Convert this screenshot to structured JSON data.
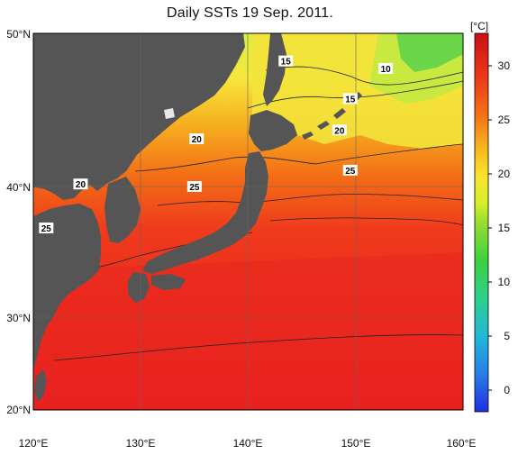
{
  "title": "Daily SSTs 19 Sep. 2011.",
  "map": {
    "x_ticks": [
      "120°E",
      "130°E",
      "140°E",
      "150°E",
      "160°E"
    ],
    "y_ticks": [
      "50°N",
      "40°N",
      "30°N",
      "20°N"
    ],
    "contour_labels": [
      {
        "text": "15",
        "lon": 143.5,
        "lat": 47.8
      },
      {
        "text": "10",
        "lon": 152.8,
        "lat": 47.2
      },
      {
        "text": "15",
        "lon": 149.5,
        "lat": 44.8
      },
      {
        "text": "20",
        "lon": 135.2,
        "lat": 41.6
      },
      {
        "text": "20",
        "lon": 148.5,
        "lat": 42.3
      },
      {
        "text": "20",
        "lon": 124.4,
        "lat": 38.0
      },
      {
        "text": "25",
        "lon": 135.0,
        "lat": 37.8
      },
      {
        "text": "25",
        "lon": 149.5,
        "lat": 39.1
      },
      {
        "text": "25",
        "lon": 121.2,
        "lat": 34.5
      }
    ],
    "land_color": "#555555"
  },
  "colorbar": {
    "unit": "[°C]",
    "min": -2,
    "max": 33,
    "ticks": [
      "30",
      "25",
      "20",
      "15",
      "10",
      "5",
      "0"
    ]
  }
}
